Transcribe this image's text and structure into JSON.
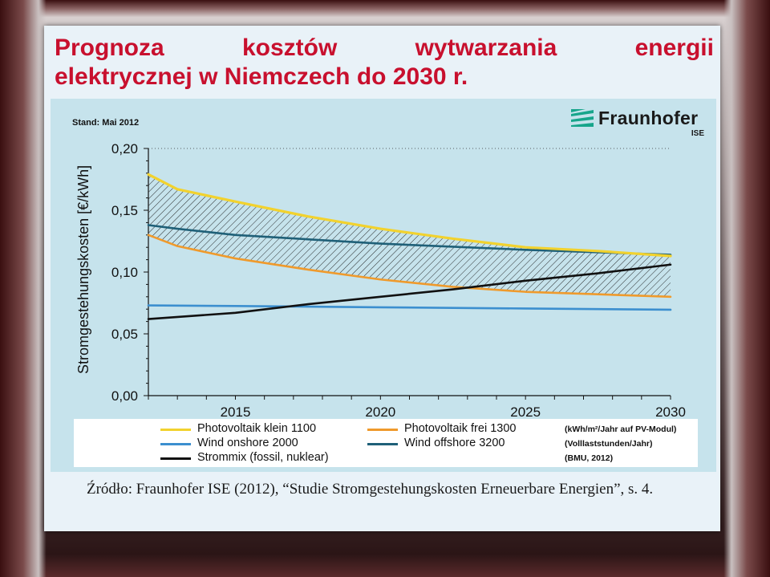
{
  "slide": {
    "title_line1_words": [
      "Prognoza",
      "kosztów",
      "wytwarzania",
      "energii"
    ],
    "title_line2": "elektrycznej w Niemczech do 2030 r.",
    "source": "Źródło: Fraunhofer ISE (2012), “Studie Stromgestehungskosten Erneuerbare Energien”, s. 4.",
    "title_color": "#c8102e"
  },
  "chart_header": {
    "stand": "Stand: Mai 2012",
    "logo_text": "Fraunhofer",
    "logo_sub": "ISE",
    "logo_color": "#17a58b"
  },
  "chart_data": {
    "type": "line",
    "ylabel": "Stromgestehungskosten [€/kWh]",
    "xlabel": "",
    "xlim": [
      2012,
      2030
    ],
    "ylim": [
      0,
      0.2
    ],
    "x_ticks": [
      "2015",
      "2020",
      "2025",
      "2030"
    ],
    "y_ticks": [
      "0,00",
      "0,05",
      "0,10",
      "0,15",
      "0,20"
    ],
    "grid": false,
    "hatched_band": "between Photovoltaik klein 1100 and Photovoltaik frei 1300",
    "series": [
      {
        "name": "Photovoltaik klein 1100",
        "color": "#f2d22e",
        "x": [
          2012,
          2013,
          2015,
          2017.5,
          2020,
          2022.5,
          2025,
          2027.5,
          2030
        ],
        "y": [
          0.179,
          0.167,
          0.157,
          0.145,
          0.135,
          0.127,
          0.12,
          0.117,
          0.113
        ]
      },
      {
        "name": "Photovoltaik  frei 1300",
        "color": "#ef9a2c",
        "x": [
          2012,
          2013,
          2015,
          2017.5,
          2020,
          2022.5,
          2025,
          2027.5,
          2030
        ],
        "y": [
          0.13,
          0.121,
          0.111,
          0.102,
          0.094,
          0.088,
          0.084,
          0.082,
          0.08
        ]
      },
      {
        "name": "Wind onshore 2000",
        "color": "#3c8fcf",
        "x": [
          2012,
          2015,
          2020,
          2025,
          2030
        ],
        "y": [
          0.073,
          0.0725,
          0.0715,
          0.0705,
          0.0695
        ]
      },
      {
        "name": "Wind offshore 3200",
        "color": "#1f6078",
        "x": [
          2012,
          2013,
          2015,
          2020,
          2025,
          2030
        ],
        "y": [
          0.138,
          0.135,
          0.13,
          0.123,
          0.118,
          0.114
        ]
      },
      {
        "name": "Strommix (fossil, nuklear)",
        "color": "#111111",
        "x": [
          2012,
          2015,
          2017.5,
          2020,
          2022.5,
          2025,
          2027.5,
          2030
        ],
        "y": [
          0.062,
          0.067,
          0.074,
          0.08,
          0.086,
          0.093,
          0.099,
          0.106
        ]
      }
    ],
    "legend_notes": [
      "(kWh/m²/Jahr auf PV-Modul)",
      "(Volllaststunden/Jahr)",
      "(BMU, 2012)"
    ]
  }
}
